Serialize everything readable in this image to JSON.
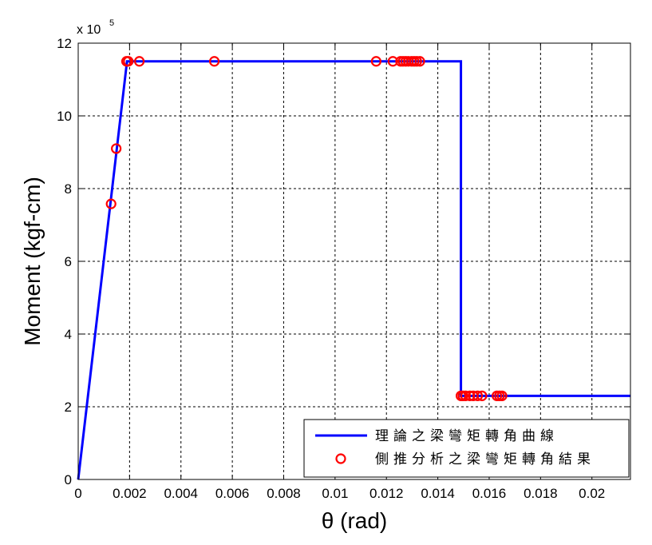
{
  "chart_data": {
    "type": "line",
    "xlabel": "θ (rad)",
    "ylabel": "Moment (kgf-cm)",
    "y_scale_label_prefix": "x 10",
    "y_scale_label_exponent": "5",
    "xlim": [
      0,
      0.0215
    ],
    "ylim": [
      0,
      12
    ],
    "x_ticks": [
      0,
      0.002,
      0.004,
      0.006,
      0.008,
      0.01,
      0.012,
      0.014,
      0.016,
      0.018,
      0.02
    ],
    "x_tick_labels": [
      "0",
      "0.002",
      "0.004",
      "0.006",
      "0.008",
      "0.01",
      "0.012",
      "0.014",
      "0.016",
      "0.018",
      "0.02"
    ],
    "y_ticks": [
      0,
      2,
      4,
      6,
      8,
      10,
      12
    ],
    "y_tick_labels": [
      "0",
      "2",
      "4",
      "6",
      "8",
      "10",
      "12"
    ],
    "grid": true,
    "legend_position": "bottom-right",
    "series": [
      {
        "name": "理論之梁彎矩轉角曲線",
        "style": "line",
        "color": "#0000ff",
        "x": [
          0,
          0.0019,
          0.0149,
          0.0149,
          0.0215
        ],
        "y": [
          0,
          11.5,
          11.5,
          2.3,
          2.3
        ]
      },
      {
        "name": "側推分析之梁彎矩轉角結果",
        "style": "circle-marker",
        "color": "#ff0000",
        "x": [
          0.00128,
          0.00148,
          0.00188,
          0.00195,
          0.00238,
          0.0053,
          0.0116,
          0.01225,
          0.01255,
          0.01265,
          0.01275,
          0.01285,
          0.01298,
          0.01308,
          0.01318,
          0.0133,
          0.0149,
          0.01498,
          0.01508,
          0.01525,
          0.01538,
          0.01555,
          0.01572,
          0.0163,
          0.0164,
          0.0165
        ],
        "y": [
          7.58,
          9.1,
          11.5,
          11.5,
          11.5,
          11.5,
          11.5,
          11.5,
          11.5,
          11.5,
          11.5,
          11.5,
          11.5,
          11.5,
          11.5,
          11.5,
          2.3,
          2.3,
          2.3,
          2.3,
          2.3,
          2.3,
          2.3,
          2.3,
          2.3,
          2.3
        ]
      }
    ]
  }
}
